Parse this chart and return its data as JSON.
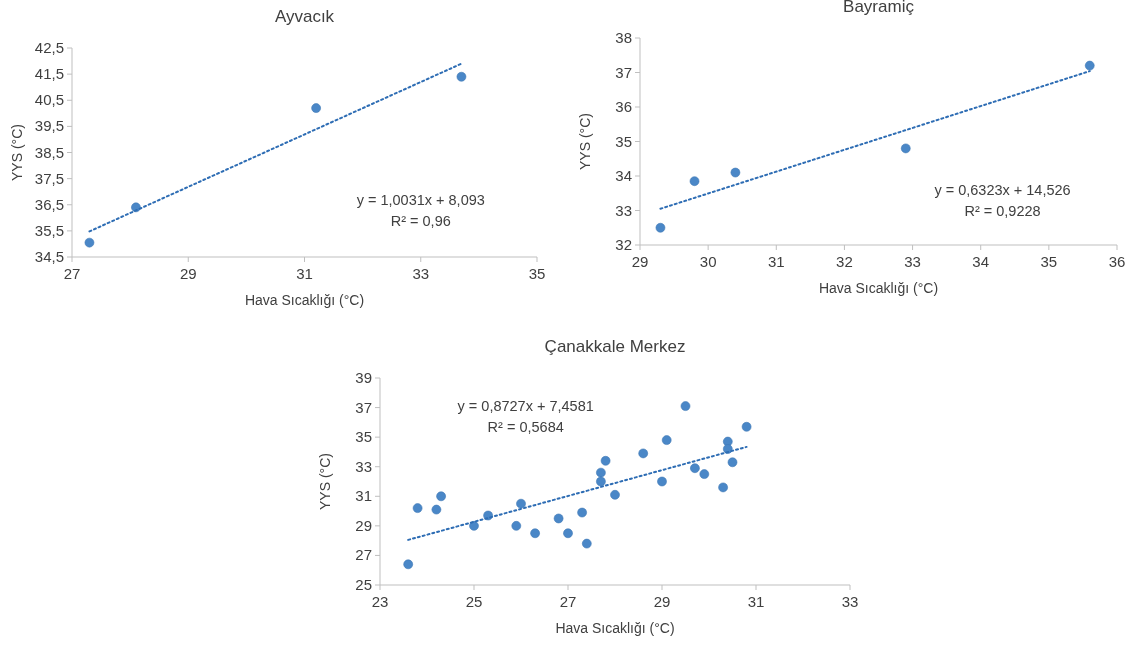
{
  "chart_data": [
    {
      "type": "scatter",
      "title": "Ayvacık",
      "xlabel": "Hava Sıcaklığı (°C)",
      "ylabel": "YYS (°C)",
      "xlim": [
        27,
        35
      ],
      "xticks": [
        27,
        29,
        31,
        33,
        35
      ],
      "ylim": [
        34.5,
        42.5
      ],
      "yticks": [
        {
          "value": 34.5,
          "label": "34,5"
        },
        {
          "value": 35.5,
          "label": "35,5"
        },
        {
          "value": 36.5,
          "label": "36,5"
        },
        {
          "value": 37.5,
          "label": "37,5"
        },
        {
          "value": 38.5,
          "label": "38,5"
        },
        {
          "value": 39.5,
          "label": "39,5"
        },
        {
          "value": 40.5,
          "label": "40,5"
        },
        {
          "value": 41.5,
          "label": "41,5"
        },
        {
          "value": 42.5,
          "label": "42,5"
        }
      ],
      "grid": false,
      "annotations": [
        "y = 1,0031x + 8,093",
        "R² = 0,96"
      ],
      "series": [
        {
          "marker": "circle",
          "color": "#4a87c7",
          "x": [
            27.3,
            28.1,
            31.2,
            33.7
          ],
          "values": [
            35.05,
            36.4,
            40.2,
            41.4
          ]
        },
        {
          "type": "line",
          "color": "#2e6db4",
          "line_style": "dotted",
          "x": [
            27.3,
            33.7
          ],
          "values": [
            35.48,
            41.9
          ]
        }
      ]
    },
    {
      "type": "scatter",
      "title": "Bayramiç",
      "xlabel": "Hava Sıcaklığı (°C)",
      "ylabel": "YYS (°C)",
      "xlim": [
        29,
        36
      ],
      "xticks": [
        29,
        30,
        31,
        32,
        33,
        34,
        35,
        36
      ],
      "ylim": [
        32,
        38
      ],
      "yticks": [
        32,
        33,
        34,
        35,
        36,
        37,
        38
      ],
      "grid": false,
      "annotations": [
        "y = 0,6323x + 14,526",
        "R² = 0,9228"
      ],
      "series": [
        {
          "marker": "circle",
          "color": "#4a87c7",
          "x": [
            29.3,
            29.8,
            30.4,
            32.9,
            35.6
          ],
          "values": [
            32.5,
            33.85,
            34.1,
            34.8,
            37.2
          ]
        },
        {
          "type": "line",
          "color": "#2e6db4",
          "line_style": "dotted",
          "x": [
            29.3,
            35.6
          ],
          "values": [
            33.05,
            37.04
          ]
        }
      ]
    },
    {
      "type": "scatter",
      "title": "Çanakkale Merkez",
      "xlabel": "Hava Sıcaklığı (°C)",
      "ylabel": "YYS (°C)",
      "xlim": [
        23,
        33
      ],
      "xticks": [
        23,
        25,
        27,
        29,
        31,
        33
      ],
      "ylim": [
        25,
        39
      ],
      "yticks": [
        25,
        27,
        29,
        31,
        33,
        35,
        37,
        39
      ],
      "grid": false,
      "annotations": [
        "y = 0,8727x + 7,4581",
        "R² = 0,5684"
      ],
      "series": [
        {
          "marker": "circle",
          "color": "#4a87c7",
          "x": [
            23.6,
            23.8,
            24.2,
            24.3,
            25.0,
            25.3,
            25.9,
            26.0,
            26.3,
            26.8,
            27.0,
            27.3,
            27.4,
            27.7,
            27.7,
            27.8,
            28.0,
            28.6,
            29.0,
            29.1,
            29.5,
            29.7,
            29.9,
            30.3,
            30.4,
            30.4,
            30.5,
            30.8
          ],
          "values": [
            26.4,
            30.2,
            30.1,
            31.0,
            29.0,
            29.7,
            29.0,
            30.5,
            28.5,
            29.5,
            28.5,
            29.9,
            27.8,
            32.6,
            32.0,
            33.4,
            31.1,
            33.9,
            32.0,
            34.8,
            37.1,
            32.9,
            32.5,
            31.6,
            34.7,
            34.2,
            33.3,
            35.7
          ]
        },
        {
          "type": "line",
          "color": "#2e6db4",
          "line_style": "dotted",
          "x": [
            23.6,
            30.8
          ],
          "values": [
            28.05,
            34.34
          ]
        }
      ]
    }
  ]
}
